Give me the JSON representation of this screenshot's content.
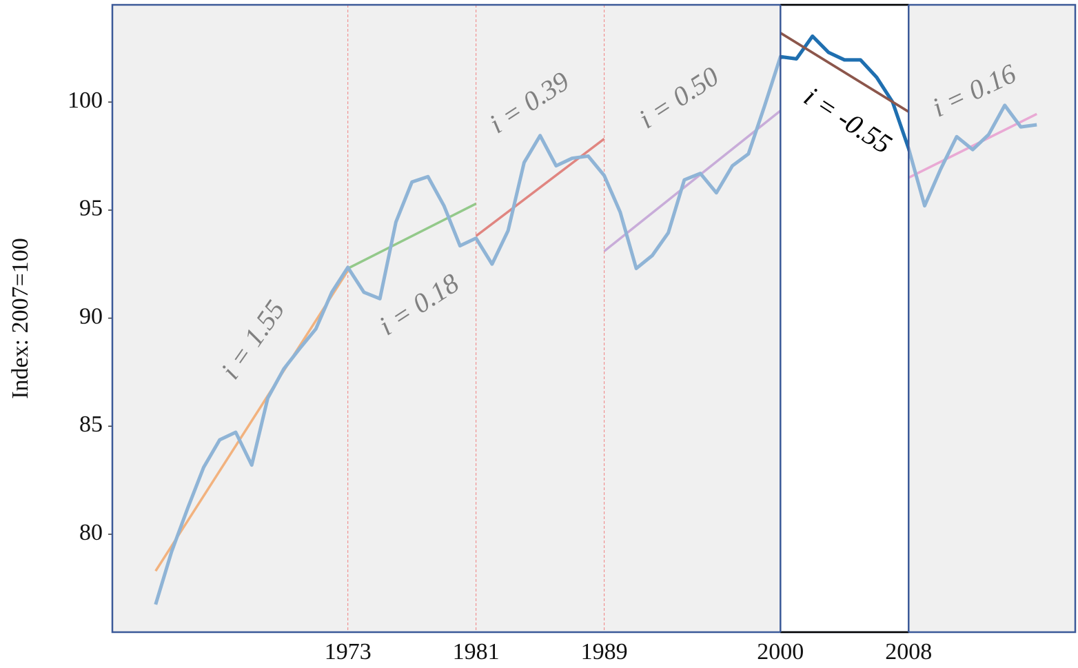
{
  "chart_data": {
    "type": "line",
    "y_label": "Index: 2007=100",
    "x": [
      1961,
      1962,
      1963,
      1964,
      1965,
      1966,
      1967,
      1968,
      1969,
      1970,
      1971,
      1972,
      1973,
      1974,
      1975,
      1976,
      1977,
      1978,
      1979,
      1980,
      1981,
      1982,
      1983,
      1984,
      1985,
      1986,
      1987,
      1988,
      1989,
      1990,
      1991,
      1992,
      1993,
      1994,
      1995,
      1996,
      1997,
      1998,
      1999,
      2000,
      2001,
      2002,
      2003,
      2004,
      2005,
      2006,
      2007,
      2008,
      2009,
      2010,
      2011,
      2012,
      2013,
      2014,
      2015,
      2016
    ],
    "series": [
      {
        "color": "#8fb4d6",
        "highlight_color": "#1f6fb0",
        "values": [
          76.75,
          79.2,
          81.2,
          83.1,
          84.37,
          84.72,
          83.2,
          86.3,
          87.65,
          88.6,
          89.5,
          91.2,
          92.35,
          91.2,
          90.9,
          94.45,
          96.3,
          96.55,
          95.2,
          93.35,
          93.7,
          92.5,
          94.05,
          97.2,
          98.45,
          97.05,
          97.4,
          97.5,
          96.6,
          94.9,
          92.3,
          92.9,
          93.95,
          96.4,
          96.7,
          95.8,
          97.05,
          97.6,
          99.8,
          102.1,
          102.0,
          103.05,
          102.3,
          101.95,
          101.95,
          101.15,
          100.0,
          97.85,
          95.2,
          96.9,
          98.4,
          97.8,
          98.5,
          99.85,
          98.85,
          98.95
        ]
      }
    ],
    "highlight": {
      "xlim": [
        2000,
        2008
      ]
    },
    "trends": [
      {
        "x": [
          1961,
          1973
        ],
        "values": [
          78.3,
          92.2
        ],
        "color": "#f2b27e",
        "label": "i = 1.55",
        "label_color": "#808080"
      },
      {
        "x": [
          1973,
          1981
        ],
        "values": [
          92.3,
          95.3
        ],
        "color": "#93c98a",
        "label": "i = 0.18",
        "label_color": "#808080"
      },
      {
        "x": [
          1981,
          1989
        ],
        "values": [
          93.8,
          98.3
        ],
        "color": "#e08580",
        "label": "i = 0.39",
        "label_color": "#808080"
      },
      {
        "x": [
          1989,
          2000
        ],
        "values": [
          93.1,
          99.6
        ],
        "color": "#c8acd9",
        "label": "i = 0.50",
        "label_color": "#808080"
      },
      {
        "x": [
          2000,
          2008
        ],
        "values": [
          103.2,
          99.55
        ],
        "color": "#8c564b",
        "label": "i = -0.55",
        "label_color": "#000000"
      },
      {
        "x": [
          2008,
          2016
        ],
        "values": [
          96.5,
          99.45
        ],
        "color": "#e9a9d4",
        "label": "i = 0.16",
        "label_color": "#808080"
      }
    ],
    "xlim": [
      1958.3,
      2018.4
    ],
    "ylim": [
      75.47,
      104.5
    ],
    "xticks": [
      1973,
      1981,
      1989,
      2000,
      2008
    ],
    "yticks": [
      80,
      85,
      90,
      95,
      100
    ],
    "vlines_color": "#f08080"
  }
}
